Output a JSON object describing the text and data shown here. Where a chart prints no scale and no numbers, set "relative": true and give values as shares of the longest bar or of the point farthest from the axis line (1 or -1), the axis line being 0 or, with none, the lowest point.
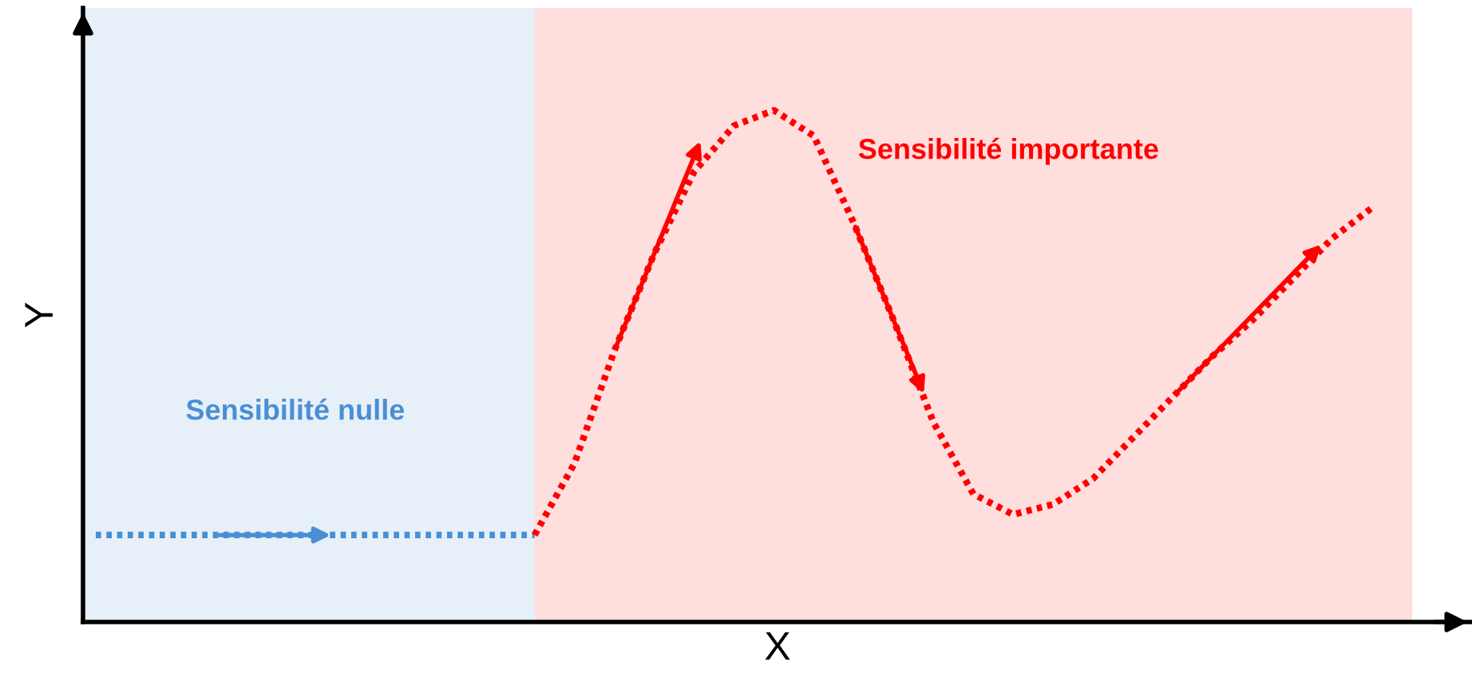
{
  "chart_data": {
    "type": "line",
    "relative": true,
    "xlabel": "X",
    "ylabel": "Y",
    "categories": [
      null,
      null,
      null,
      null,
      null,
      null,
      null,
      null,
      null,
      null,
      null,
      null,
      null,
      null,
      null,
      null,
      null,
      null,
      null,
      null,
      null,
      null,
      null,
      null,
      null,
      null,
      null,
      null,
      null,
      null,
      null,
      null,
      null
    ],
    "series": [
      {
        "color": "#4a8fd4",
        "line_style": "dotted",
        "values": [
          0.17,
          0.17,
          0.17,
          0.17,
          0.17,
          0.17,
          0.17,
          0.17,
          0.17,
          0.17,
          0.17,
          0.17,
          null,
          null,
          null,
          null,
          null,
          null,
          null,
          null,
          null,
          null,
          null,
          null,
          null,
          null,
          null,
          null,
          null,
          null,
          null,
          null,
          null
        ]
      },
      {
        "color": "#ff0000",
        "line_style": "dotted",
        "values": [
          null,
          null,
          null,
          null,
          null,
          null,
          null,
          null,
          null,
          null,
          null,
          0.17,
          0.31,
          0.53,
          0.72,
          0.88,
          0.97,
          1.0,
          0.95,
          0.78,
          0.59,
          0.39,
          0.25,
          0.21,
          0.23,
          0.28,
          0.36,
          0.44,
          0.52,
          0.59,
          0.67,
          0.75,
          0.81
        ]
      }
    ],
    "annotations": [
      "Sensibilité nulle",
      "Sensibilité importante"
    ],
    "legend": false,
    "marker": "none"
  }
}
